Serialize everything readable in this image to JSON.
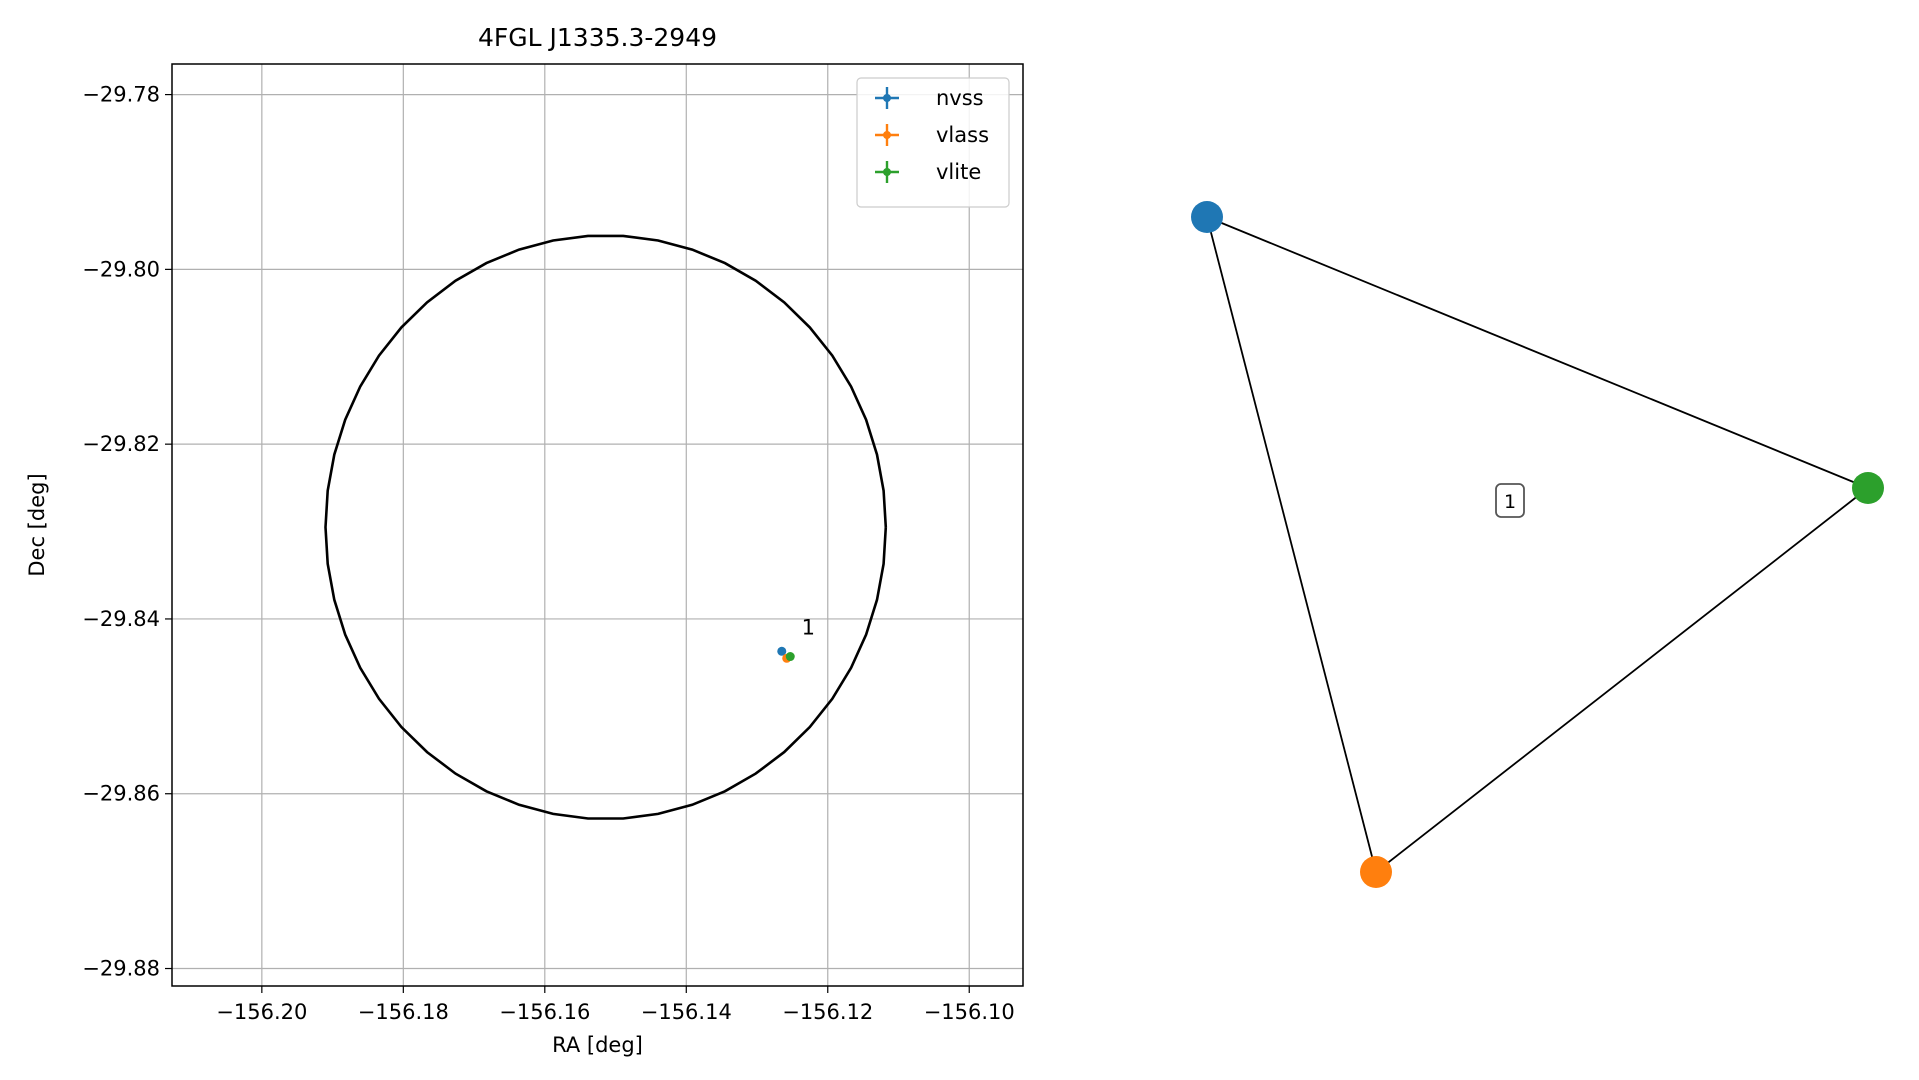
{
  "chart_data": [
    {
      "type": "scatter",
      "title": "4FGL J1335.3-2949",
      "xlabel": "RA [deg]",
      "ylabel": "Dec [deg]",
      "xlim": [
        -156.2127,
        -156.0924
      ],
      "ylim": [
        -29.882,
        -29.7765
      ],
      "xticks": [
        -156.2,
        -156.18,
        -156.16,
        -156.14,
        -156.12,
        -156.1
      ],
      "xtick_labels": [
        "−156.20",
        "−156.18",
        "−156.16",
        "−156.14",
        "−156.12",
        "−156.10"
      ],
      "yticks": [
        -29.78,
        -29.8,
        -29.82,
        -29.84,
        -29.86,
        -29.88
      ],
      "ytick_labels": [
        "−29.78",
        "−29.80",
        "−29.82",
        "−29.84",
        "−29.86",
        "−29.88"
      ],
      "grid": true,
      "legend_position": "top-right",
      "localization_ellipse": {
        "center_ra": -156.1514,
        "center_dec": -29.8295,
        "radius_ra": 0.0396,
        "radius_dec": 0.0334,
        "color": "#000000"
      },
      "series": [
        {
          "name": "nvss",
          "color": "#1f77b4",
          "x": [
            -156.1265
          ],
          "y": [
            -29.8437
          ]
        },
        {
          "name": "vlass",
          "color": "#ff7f0e",
          "x": [
            -156.1258
          ],
          "y": [
            -29.8445
          ]
        },
        {
          "name": "vlite",
          "color": "#2ca02c",
          "x": [
            -156.1253
          ],
          "y": [
            -29.8443
          ]
        }
      ],
      "annotations": [
        {
          "text": "1",
          "x": -156.1237,
          "y": -29.8418
        }
      ]
    },
    {
      "type": "network",
      "nodes": [
        {
          "id": "nvss",
          "color": "#1f77b4"
        },
        {
          "id": "vlass",
          "color": "#ff7f0e"
        },
        {
          "id": "vlite",
          "color": "#2ca02c"
        }
      ],
      "edges": [
        [
          "nvss",
          "vlass"
        ],
        [
          "nvss",
          "vlite"
        ],
        [
          "vlass",
          "vlite"
        ]
      ],
      "group_label": "1"
    }
  ]
}
